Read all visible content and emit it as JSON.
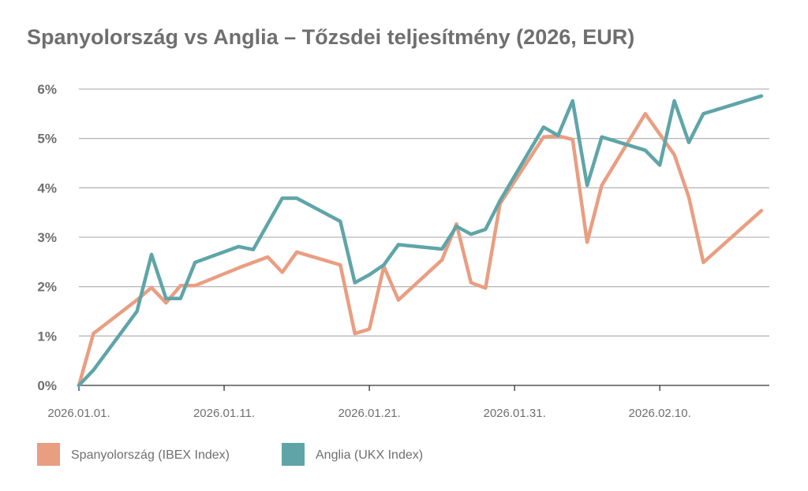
{
  "chart_data": {
    "type": "line",
    "title": "Spanyolország vs Anglia – Tőzsdei teljesítmény (2026, EUR)",
    "xlabel": "",
    "ylabel": "",
    "ylim": [
      0,
      6
    ],
    "yticks": [
      "0%",
      "1%",
      "2%",
      "3%",
      "4%",
      "5%",
      "6%"
    ],
    "xlim": [
      0,
      47
    ],
    "xticks": [
      {
        "day": 0,
        "label": "2026.01.01."
      },
      {
        "day": 10,
        "label": "2026.01.11."
      },
      {
        "day": 20,
        "label": "2026.01.21."
      },
      {
        "day": 30,
        "label": "2026.01.31."
      },
      {
        "day": 40,
        "label": "2026.02.10."
      }
    ],
    "grid": true,
    "legend_position": "bottom-left",
    "series": [
      {
        "name": "Spanyolország (IBEX Index)",
        "color": "#E99E82",
        "points": [
          [
            0,
            0.0
          ],
          [
            1,
            1.05
          ],
          [
            4,
            1.73
          ],
          [
            5,
            1.98
          ],
          [
            6,
            1.67
          ],
          [
            7,
            2.02
          ],
          [
            8,
            2.02
          ],
          [
            11,
            2.38
          ],
          [
            13,
            2.6
          ],
          [
            14,
            2.29
          ],
          [
            15,
            2.7
          ],
          [
            18,
            2.44
          ],
          [
            19,
            1.05
          ],
          [
            20,
            1.14
          ],
          [
            21,
            2.41
          ],
          [
            22,
            1.73
          ],
          [
            25,
            2.54
          ],
          [
            26,
            3.27
          ],
          [
            27,
            2.08
          ],
          [
            28,
            1.97
          ],
          [
            29,
            3.68
          ],
          [
            32,
            5.03
          ],
          [
            33,
            5.05
          ],
          [
            34,
            4.98
          ],
          [
            35,
            2.9
          ],
          [
            36,
            4.05
          ],
          [
            39,
            5.5
          ],
          [
            41,
            4.67
          ],
          [
            42,
            3.81
          ],
          [
            43,
            2.49
          ],
          [
            47,
            3.54
          ]
        ]
      },
      {
        "name": "Anglia (UKX Index)",
        "color": "#5FA5A8",
        "points": [
          [
            0,
            0.0
          ],
          [
            1,
            0.31
          ],
          [
            4,
            1.5
          ],
          [
            5,
            2.65
          ],
          [
            6,
            1.76
          ],
          [
            7,
            1.76
          ],
          [
            8,
            2.49
          ],
          [
            11,
            2.81
          ],
          [
            12,
            2.75
          ],
          [
            14,
            3.79
          ],
          [
            15,
            3.79
          ],
          [
            18,
            3.32
          ],
          [
            19,
            2.08
          ],
          [
            20,
            2.24
          ],
          [
            21,
            2.44
          ],
          [
            22,
            2.85
          ],
          [
            25,
            2.76
          ],
          [
            26,
            3.22
          ],
          [
            27,
            3.06
          ],
          [
            28,
            3.16
          ],
          [
            29,
            3.74
          ],
          [
            32,
            5.23
          ],
          [
            33,
            5.06
          ],
          [
            34,
            5.76
          ],
          [
            35,
            4.05
          ],
          [
            36,
            5.03
          ],
          [
            39,
            4.76
          ],
          [
            40,
            4.46
          ],
          [
            41,
            5.76
          ],
          [
            42,
            4.92
          ],
          [
            43,
            5.5
          ],
          [
            47,
            5.86
          ]
        ]
      }
    ]
  }
}
